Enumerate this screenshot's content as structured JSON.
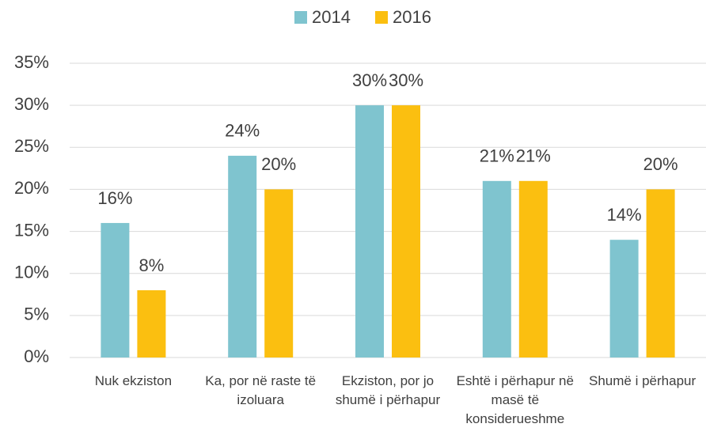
{
  "chart_data": {
    "type": "bar",
    "categories": [
      "Nuk ekziston",
      "Ka, por në raste të izoluara",
      "Ekziston, por jo shumë i përhapur",
      "Eshtë i përhapur në masë të konsiderueshme",
      "Shumë i përhapur"
    ],
    "series": [
      {
        "name": "2014",
        "color": "#7fc4cf",
        "values": [
          16,
          24,
          30,
          21,
          14
        ],
        "value_labels": [
          "16%",
          "24%",
          "30%",
          "21%",
          "14%"
        ]
      },
      {
        "name": "2016",
        "color": "#fbbf10",
        "values": [
          8,
          20,
          30,
          21,
          20
        ],
        "value_labels": [
          "8%",
          "20%",
          "30%",
          "21%",
          "20%"
        ]
      }
    ],
    "ylim": [
      0,
      35
    ],
    "yticks": [
      {
        "value": 0,
        "label": "0%"
      },
      {
        "value": 5,
        "label": "5%"
      },
      {
        "value": 10,
        "label": "10%"
      },
      {
        "value": 15,
        "label": "15%"
      },
      {
        "value": 20,
        "label": "20%"
      },
      {
        "value": 25,
        "label": "25%"
      },
      {
        "value": 30,
        "label": "30%"
      },
      {
        "value": 35,
        "label": "35%"
      }
    ],
    "grid": true,
    "legend": "top"
  }
}
